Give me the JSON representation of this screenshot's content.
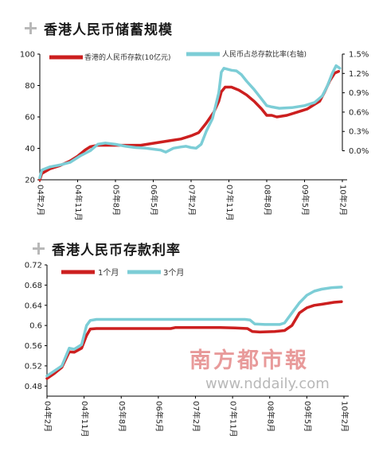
{
  "chart_data": [
    {
      "type": "line",
      "title": "香港人民币储蓄规模",
      "x_tick_labels": [
        "04年2月",
        "04年11月",
        "05年8月",
        "06年5月",
        "07年2月",
        "07年11月",
        "08年8月",
        "09年5月",
        "10年2月"
      ],
      "y_left": {
        "ticks": [
          "20",
          "40",
          "60",
          "80",
          "100"
        ],
        "range": [
          20,
          100
        ]
      },
      "y_right": {
        "ticks": [
          "0.0%",
          "0.3%",
          "0.6%",
          "0.9%",
          "1.2%",
          "1.5%"
        ],
        "range": [
          -0.45,
          1.5
        ]
      },
      "legend": [
        "香港的人民币存款(10亿元)",
        "人民币占总存款比率(右轴)"
      ],
      "series": [
        {
          "name": "香港的人民币存款(10亿元)",
          "color": "#cc1f1f",
          "axis": "left",
          "points": [
            [
              0,
              20
            ],
            [
              0.08,
              24
            ],
            [
              0.4,
              27
            ],
            [
              0.8,
              29
            ],
            [
              1.2,
              32
            ],
            [
              1.5,
              35
            ],
            [
              1.8,
              39
            ],
            [
              2.0,
              41
            ],
            [
              2.3,
              42
            ],
            [
              2.6,
              42
            ],
            [
              3.0,
              42
            ],
            [
              3.4,
              42
            ],
            [
              4.0,
              42
            ],
            [
              4.4,
              43
            ],
            [
              4.8,
              44
            ],
            [
              5.2,
              45
            ],
            [
              5.6,
              46
            ],
            [
              5.8,
              47
            ],
            [
              6.0,
              48
            ],
            [
              6.3,
              50
            ],
            [
              6.6,
              56
            ],
            [
              6.9,
              63
            ],
            [
              7.1,
              70
            ],
            [
              7.2,
              76
            ],
            [
              7.35,
              79
            ],
            [
              7.6,
              79
            ],
            [
              7.9,
              77
            ],
            [
              8.2,
              74
            ],
            [
              8.5,
              70
            ],
            [
              8.8,
              65
            ],
            [
              9.0,
              61
            ],
            [
              9.2,
              61
            ],
            [
              9.4,
              60
            ],
            [
              9.8,
              61
            ],
            [
              10.2,
              63
            ],
            [
              10.6,
              65
            ],
            [
              10.9,
              68
            ],
            [
              11.1,
              70
            ],
            [
              11.3,
              76
            ],
            [
              11.5,
              83
            ],
            [
              11.7,
              88
            ],
            [
              11.85,
              89
            ]
          ]
        },
        {
          "name": "人民币占总存款比率(右轴)",
          "color": "#7ccdd6",
          "axis": "right",
          "points": [
            [
              0,
              -0.42
            ],
            [
              0.08,
              -0.3
            ],
            [
              0.4,
              -0.25
            ],
            [
              0.8,
              -0.22
            ],
            [
              1.2,
              -0.18
            ],
            [
              1.6,
              -0.08
            ],
            [
              2.0,
              0.0
            ],
            [
              2.3,
              0.1
            ],
            [
              2.6,
              0.12
            ],
            [
              3.0,
              0.1
            ],
            [
              3.4,
              0.07
            ],
            [
              3.8,
              0.05
            ],
            [
              4.2,
              0.04
            ],
            [
              4.6,
              0.02
            ],
            [
              4.8,
              0.01
            ],
            [
              5.0,
              -0.02
            ],
            [
              5.3,
              0.04
            ],
            [
              5.6,
              0.06
            ],
            [
              5.8,
              0.07
            ],
            [
              6.0,
              0.05
            ],
            [
              6.2,
              0.04
            ],
            [
              6.4,
              0.1
            ],
            [
              6.6,
              0.3
            ],
            [
              6.85,
              0.5
            ],
            [
              7.1,
              0.9
            ],
            [
              7.2,
              1.22
            ],
            [
              7.3,
              1.28
            ],
            [
              7.6,
              1.25
            ],
            [
              7.8,
              1.24
            ],
            [
              8.0,
              1.18
            ],
            [
              8.2,
              1.08
            ],
            [
              8.5,
              0.95
            ],
            [
              8.8,
              0.8
            ],
            [
              9.0,
              0.7
            ],
            [
              9.2,
              0.68
            ],
            [
              9.5,
              0.66
            ],
            [
              10.0,
              0.67
            ],
            [
              10.5,
              0.7
            ],
            [
              10.9,
              0.75
            ],
            [
              11.2,
              0.85
            ],
            [
              11.4,
              1.0
            ],
            [
              11.6,
              1.2
            ],
            [
              11.75,
              1.32
            ],
            [
              11.9,
              1.28
            ]
          ]
        }
      ]
    },
    {
      "type": "line",
      "title": "香港人民币存款利率",
      "x_tick_labels": [
        "04年2月",
        "04年11月",
        "05年8月",
        "06年5月",
        "07年2月",
        "07年11月",
        "08年8月",
        "09年5月",
        "10年2月"
      ],
      "y_left": {
        "ticks": [
          "0.48",
          "0.52",
          "0.56",
          "0.6",
          "0.64",
          "0.68",
          "0.72"
        ],
        "range": [
          0.46,
          0.72
        ]
      },
      "legend": [
        "1个月",
        "3个月"
      ],
      "series": [
        {
          "name": "1个月",
          "color": "#cc1f1f",
          "points": [
            [
              0,
              0.495
            ],
            [
              0.3,
              0.505
            ],
            [
              0.6,
              0.517
            ],
            [
              0.9,
              0.548
            ],
            [
              1.1,
              0.547
            ],
            [
              1.4,
              0.555
            ],
            [
              1.6,
              0.58
            ],
            [
              1.75,
              0.593
            ],
            [
              2.0,
              0.594
            ],
            [
              3.0,
              0.594
            ],
            [
              4.0,
              0.594
            ],
            [
              5.0,
              0.594
            ],
            [
              5.2,
              0.596
            ],
            [
              6.0,
              0.596
            ],
            [
              7.0,
              0.596
            ],
            [
              7.6,
              0.595
            ],
            [
              8.1,
              0.594
            ],
            [
              8.3,
              0.588
            ],
            [
              8.6,
              0.587
            ],
            [
              9.2,
              0.588
            ],
            [
              9.6,
              0.59
            ],
            [
              9.9,
              0.6
            ],
            [
              10.2,
              0.625
            ],
            [
              10.5,
              0.635
            ],
            [
              10.8,
              0.64
            ],
            [
              11.1,
              0.642
            ],
            [
              11.6,
              0.646
            ],
            [
              11.9,
              0.647
            ]
          ]
        },
        {
          "name": "3个月",
          "color": "#7ccdd6",
          "points": [
            [
              0,
              0.5
            ],
            [
              0.3,
              0.51
            ],
            [
              0.6,
              0.52
            ],
            [
              0.9,
              0.555
            ],
            [
              1.1,
              0.553
            ],
            [
              1.4,
              0.562
            ],
            [
              1.6,
              0.6
            ],
            [
              1.75,
              0.61
            ],
            [
              2.0,
              0.612
            ],
            [
              3.0,
              0.612
            ],
            [
              4.0,
              0.612
            ],
            [
              5.0,
              0.612
            ],
            [
              6.0,
              0.612
            ],
            [
              7.0,
              0.612
            ],
            [
              8.0,
              0.612
            ],
            [
              8.2,
              0.611
            ],
            [
              8.4,
              0.603
            ],
            [
              8.8,
              0.602
            ],
            [
              9.4,
              0.602
            ],
            [
              9.6,
              0.605
            ],
            [
              9.9,
              0.625
            ],
            [
              10.2,
              0.645
            ],
            [
              10.5,
              0.66
            ],
            [
              10.8,
              0.668
            ],
            [
              11.1,
              0.672
            ],
            [
              11.5,
              0.675
            ],
            [
              11.9,
              0.676
            ]
          ]
        }
      ]
    }
  ],
  "watermark": {
    "brand": "南方都市報",
    "url": "www.nddaily.com"
  }
}
